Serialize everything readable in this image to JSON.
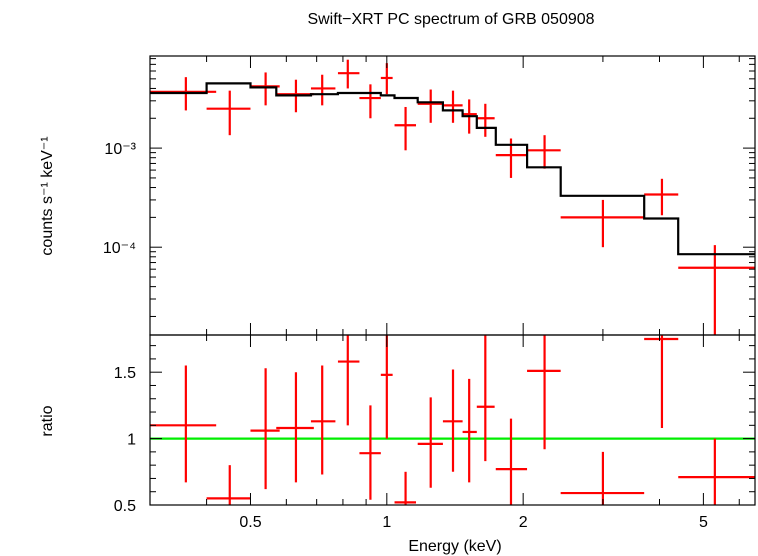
{
  "chart_data": [
    {
      "type": "scatter",
      "title": "Swift−XRT PC spectrum of GRB 050908",
      "xlabel": "Energy (keV)",
      "ylabel": "counts s⁻¹ keV⁻¹",
      "xscale": "log",
      "yscale": "log",
      "xlim": [
        0.3,
        6.5
      ],
      "ylim": [
        1.3e-05,
        0.0085
      ],
      "ytick_values": [
        0.001,
        0.0001
      ],
      "ytick_labels": [
        "10⁻³",
        "10⁻⁴"
      ],
      "grid": false,
      "series": [
        {
          "kind": "data",
          "color": "#ff0000",
          "points": [
            {
              "x": 0.36,
              "xlo": 0.3,
              "xhi": 0.42,
              "y": 0.0037,
              "ylo": 0.0024,
              "yhi": 0.0052
            },
            {
              "x": 0.45,
              "xlo": 0.4,
              "xhi": 0.5,
              "y": 0.0025,
              "ylo": 0.00135,
              "yhi": 0.0038
            },
            {
              "x": 0.54,
              "xlo": 0.5,
              "xhi": 0.58,
              "y": 0.0042,
              "ylo": 0.0027,
              "yhi": 0.0058
            },
            {
              "x": 0.63,
              "xlo": 0.57,
              "xhi": 0.69,
              "y": 0.0035,
              "ylo": 0.0023,
              "yhi": 0.0049
            },
            {
              "x": 0.72,
              "xlo": 0.68,
              "xhi": 0.77,
              "y": 0.004,
              "ylo": 0.0027,
              "yhi": 0.0055
            },
            {
              "x": 0.82,
              "xlo": 0.78,
              "xhi": 0.87,
              "y": 0.0057,
              "ylo": 0.004,
              "yhi": 0.0078
            },
            {
              "x": 0.92,
              "xlo": 0.87,
              "xhi": 0.97,
              "y": 0.0032,
              "ylo": 0.002,
              "yhi": 0.0044
            },
            {
              "x": 1.0,
              "xlo": 0.97,
              "xhi": 1.03,
              "y": 0.0051,
              "ylo": 0.0035,
              "yhi": 0.0072
            },
            {
              "x": 1.1,
              "xlo": 1.04,
              "xhi": 1.16,
              "y": 0.0017,
              "ylo": 0.00095,
              "yhi": 0.0026
            },
            {
              "x": 1.25,
              "xlo": 1.17,
              "xhi": 1.33,
              "y": 0.0028,
              "ylo": 0.0018,
              "yhi": 0.0039
            },
            {
              "x": 1.4,
              "xlo": 1.33,
              "xhi": 1.47,
              "y": 0.0027,
              "ylo": 0.0018,
              "yhi": 0.0038
            },
            {
              "x": 1.52,
              "xlo": 1.47,
              "xhi": 1.58,
              "y": 0.0022,
              "ylo": 0.0014,
              "yhi": 0.0031
            },
            {
              "x": 1.65,
              "xlo": 1.58,
              "xhi": 1.73,
              "y": 0.002,
              "ylo": 0.0013,
              "yhi": 0.0028
            },
            {
              "x": 1.88,
              "xlo": 1.74,
              "xhi": 2.04,
              "y": 0.00085,
              "ylo": 0.0005,
              "yhi": 0.00125
            },
            {
              "x": 2.23,
              "xlo": 2.04,
              "xhi": 2.42,
              "y": 0.00095,
              "ylo": 0.00062,
              "yhi": 0.00135
            },
            {
              "x": 3.0,
              "xlo": 2.42,
              "xhi": 3.7,
              "y": 0.0002,
              "ylo": 0.0001,
              "yhi": 0.0003
            },
            {
              "x": 4.05,
              "xlo": 3.7,
              "xhi": 4.4,
              "y": 0.00034,
              "ylo": 0.00021,
              "yhi": 0.00049
            },
            {
              "x": 5.3,
              "xlo": 4.4,
              "xhi": 6.5,
              "y": 6.2e-05,
              "ylo": 1e-05,
              "yhi": 0.000105
            }
          ]
        },
        {
          "kind": "model",
          "color": "#000000",
          "steps": [
            {
              "x0": 0.3,
              "x1": 0.4,
              "y": 0.0036
            },
            {
              "x0": 0.4,
              "x1": 0.5,
              "y": 0.0045
            },
            {
              "x0": 0.5,
              "x1": 0.57,
              "y": 0.0041
            },
            {
              "x0": 0.57,
              "x1": 0.68,
              "y": 0.0034
            },
            {
              "x0": 0.68,
              "x1": 0.78,
              "y": 0.0035
            },
            {
              "x0": 0.78,
              "x1": 0.97,
              "y": 0.0036
            },
            {
              "x0": 0.97,
              "x1": 1.04,
              "y": 0.0034
            },
            {
              "x0": 1.04,
              "x1": 1.17,
              "y": 0.0032
            },
            {
              "x0": 1.17,
              "x1": 1.33,
              "y": 0.0029
            },
            {
              "x0": 1.33,
              "x1": 1.47,
              "y": 0.0024
            },
            {
              "x0": 1.47,
              "x1": 1.58,
              "y": 0.0021
            },
            {
              "x0": 1.58,
              "x1": 1.74,
              "y": 0.0016
            },
            {
              "x0": 1.74,
              "x1": 2.04,
              "y": 0.00108
            },
            {
              "x0": 2.04,
              "x1": 2.42,
              "y": 0.00064
            },
            {
              "x0": 2.42,
              "x1": 3.7,
              "y": 0.00033
            },
            {
              "x0": 3.7,
              "x1": 4.4,
              "y": 0.000195
            },
            {
              "x0": 4.4,
              "x1": 6.5,
              "y": 8.5e-05
            }
          ]
        }
      ]
    },
    {
      "type": "scatter",
      "xlabel": "Energy (keV)",
      "ylabel": "ratio",
      "xscale": "log",
      "yscale": "linear",
      "xlim": [
        0.3,
        6.5
      ],
      "ylim": [
        0.5,
        1.78
      ],
      "ytick_values": [
        0.5,
        1,
        1.5
      ],
      "ytick_labels": [
        "0.5",
        "1",
        "1.5"
      ],
      "xtick_values": [
        0.5,
        1,
        2,
        5
      ],
      "xtick_labels": [
        "0.5",
        "1",
        "2",
        "5"
      ],
      "reference_line": {
        "y": 1,
        "color": "#00ee00"
      },
      "grid": false,
      "series": [
        {
          "kind": "data",
          "color": "#ff0000",
          "points": [
            {
              "x": 0.36,
              "xlo": 0.3,
              "xhi": 0.42,
              "y": 1.1,
              "ylo": 0.67,
              "yhi": 1.55
            },
            {
              "x": 0.45,
              "xlo": 0.4,
              "xhi": 0.5,
              "y": 0.55,
              "ylo": 0.5,
              "yhi": 0.8
            },
            {
              "x": 0.54,
              "xlo": 0.5,
              "xhi": 0.58,
              "y": 1.06,
              "ylo": 0.62,
              "yhi": 1.53
            },
            {
              "x": 0.63,
              "xlo": 0.57,
              "xhi": 0.69,
              "y": 1.08,
              "ylo": 0.67,
              "yhi": 1.5
            },
            {
              "x": 0.72,
              "xlo": 0.68,
              "xhi": 0.77,
              "y": 1.13,
              "ylo": 0.73,
              "yhi": 1.55
            },
            {
              "x": 0.82,
              "xlo": 0.78,
              "xhi": 0.87,
              "y": 1.58,
              "ylo": 1.1,
              "yhi": 1.78
            },
            {
              "x": 0.92,
              "xlo": 0.87,
              "xhi": 0.97,
              "y": 0.89,
              "ylo": 0.54,
              "yhi": 1.25
            },
            {
              "x": 1.0,
              "xlo": 0.97,
              "xhi": 1.03,
              "y": 1.48,
              "ylo": 1.0,
              "yhi": 1.78
            },
            {
              "x": 1.1,
              "xlo": 1.04,
              "xhi": 1.16,
              "y": 0.52,
              "ylo": 0.5,
              "yhi": 0.75
            },
            {
              "x": 1.25,
              "xlo": 1.17,
              "xhi": 1.33,
              "y": 0.96,
              "ylo": 0.63,
              "yhi": 1.31
            },
            {
              "x": 1.4,
              "xlo": 1.33,
              "xhi": 1.47,
              "y": 1.13,
              "ylo": 0.75,
              "yhi": 1.52
            },
            {
              "x": 1.52,
              "xlo": 1.47,
              "xhi": 1.58,
              "y": 1.05,
              "ylo": 0.67,
              "yhi": 1.45
            },
            {
              "x": 1.65,
              "xlo": 1.58,
              "xhi": 1.73,
              "y": 1.24,
              "ylo": 0.83,
              "yhi": 1.78
            },
            {
              "x": 1.88,
              "xlo": 1.74,
              "xhi": 2.04,
              "y": 0.77,
              "ylo": 0.5,
              "yhi": 1.15
            },
            {
              "x": 2.23,
              "xlo": 2.04,
              "xhi": 2.42,
              "y": 1.51,
              "ylo": 0.92,
              "yhi": 1.78
            },
            {
              "x": 3.0,
              "xlo": 2.42,
              "xhi": 3.7,
              "y": 0.59,
              "ylo": 0.5,
              "yhi": 0.9
            },
            {
              "x": 4.05,
              "xlo": 3.7,
              "xhi": 4.4,
              "y": 1.75,
              "ylo": 1.08,
              "yhi": 1.78
            },
            {
              "x": 5.3,
              "xlo": 4.4,
              "xhi": 6.5,
              "y": 0.71,
              "ylo": 0.5,
              "yhi": 1.0
            }
          ]
        }
      ]
    }
  ]
}
